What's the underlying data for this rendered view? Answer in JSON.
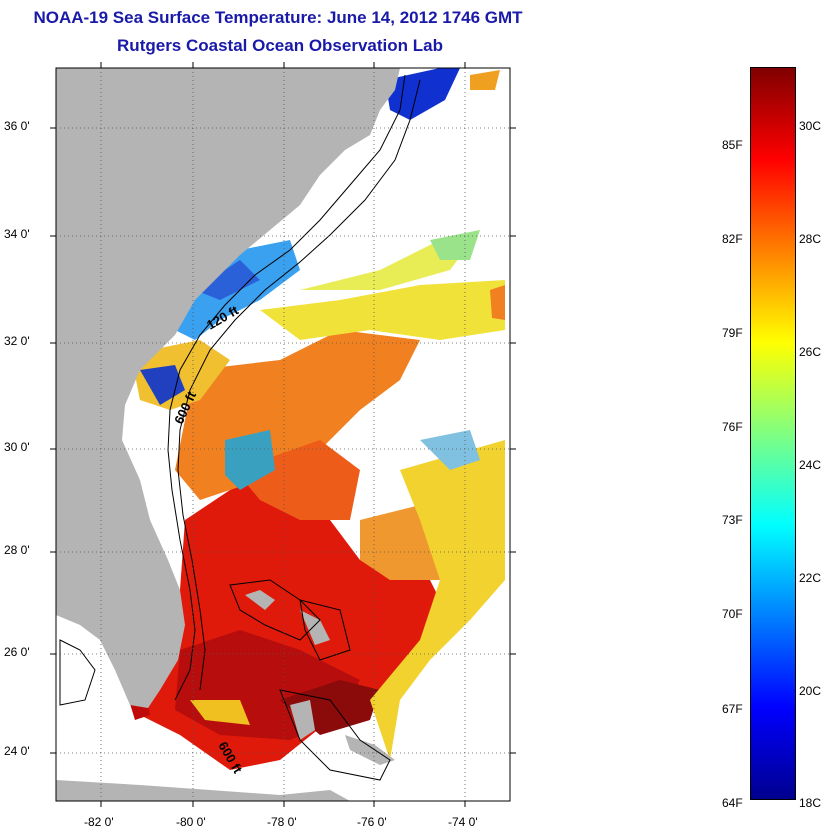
{
  "title": {
    "line1": "NOAA-19 Sea Surface Temperature:  June 14, 2012 1746 GMT",
    "line2": "Rutgers Coastal Ocean Observation Lab"
  },
  "map": {
    "lat_ticks": [
      "36 0'",
      "34 0'",
      "32 0'",
      "30 0'",
      "28 0'",
      "26 0'",
      "24 0'"
    ],
    "lon_ticks": [
      "-82 0'",
      "-80 0'",
      "-78 0'",
      "-76 0'",
      "-74 0'"
    ],
    "contour_labels": [
      "120 ft",
      "600 ft",
      "600 ft"
    ],
    "land_color": "#b4b4b4",
    "grid": true
  },
  "colorbar": {
    "fahrenheit_labels": [
      "85F",
      "82F",
      "79F",
      "76F",
      "73F",
      "70F",
      "67F",
      "64F"
    ],
    "celsius_labels": [
      "30C",
      "28C",
      "26C",
      "24C",
      "22C",
      "20C",
      "18C"
    ],
    "colormap": [
      "#00008f",
      "#0000ff",
      "#0080ff",
      "#00ffff",
      "#80ff80",
      "#ffff00",
      "#ff8000",
      "#ff0000",
      "#800000"
    ]
  }
}
